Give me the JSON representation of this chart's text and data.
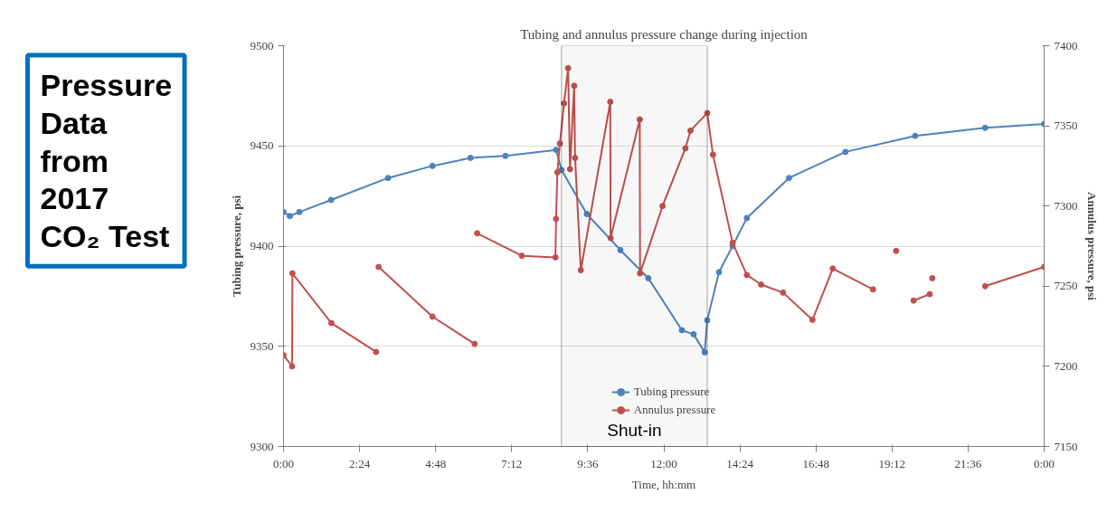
{
  "chart_data": {
    "type": "line",
    "title": "Tubing and annulus pressure change during injection",
    "xlabel": "Time, hh:mm",
    "ylabel": "Tubing pressure, psi",
    "y2label": "Annulus pressure, psi",
    "xlim": [
      0,
      24
    ],
    "ylim": [
      9300,
      9500
    ],
    "y2lim": [
      7150,
      7400
    ],
    "xticks": [
      {
        "value": 0,
        "label": "0:00"
      },
      {
        "value": 2.4,
        "label": "2:24"
      },
      {
        "value": 4.8,
        "label": "4:48"
      },
      {
        "value": 7.2,
        "label": "7:12"
      },
      {
        "value": 9.6,
        "label": "9:36"
      },
      {
        "value": 12,
        "label": "12:00"
      },
      {
        "value": 14.4,
        "label": "14:24"
      },
      {
        "value": 16.8,
        "label": "16:48"
      },
      {
        "value": 19.2,
        "label": "19:12"
      },
      {
        "value": 21.6,
        "label": "21:36"
      },
      {
        "value": 24,
        "label": "0:00"
      }
    ],
    "yticks": [
      9300,
      9350,
      9400,
      9450,
      9500
    ],
    "y2ticks": [
      7150,
      7200,
      7250,
      7300,
      7350,
      7400
    ],
    "grid": "y",
    "legend": "bottom",
    "marker": "circle",
    "line_style": "solid",
    "series": [
      {
        "name": "Tubing pressure",
        "color": "#4f81bd",
        "x": [
          0,
          0.2,
          0.5,
          1.5,
          3.3,
          4.7,
          5.9,
          7.0,
          8.6,
          8.77,
          9.57,
          10.63,
          11.51,
          12.57,
          12.94,
          13.29,
          13.37,
          13.74,
          14.17,
          14.62,
          15.95,
          17.73,
          19.93,
          22.14,
          24
        ],
        "values": [
          9417,
          9415,
          9417,
          9423,
          9434,
          9440,
          9444,
          9445,
          9448,
          9438,
          9416,
          9398,
          9384,
          9358,
          9356,
          9347,
          9363,
          9387,
          9400,
          9414,
          9434,
          9447,
          9455,
          9459,
          9461
        ]
      },
      {
        "name": "Annulus pressure",
        "color": "#c0504d",
        "axis": "y2",
        "x": [
          0,
          0.27,
          0.28,
          1.51,
          2.92,
          2.95,
          3.0,
          4.7,
          6.03,
          6.07,
          6.11,
          7.52,
          8.58,
          8.6,
          8.64,
          8.72,
          8.85,
          8.98,
          9.04,
          9.17,
          9.2,
          9.38,
          10.31,
          10.32,
          11.24,
          11.25,
          11.96,
          12.68,
          12.84,
          13.37,
          13.55,
          14.17,
          14.62,
          15.07,
          15.76,
          16.69,
          17.33,
          18.6,
          19.3,
          19.33,
          19.35,
          19.37,
          19.88,
          20.39,
          20.43,
          20.47,
          20.5,
          22.14,
          24
        ],
        "values": [
          7207,
          7200,
          7258,
          7227,
          7209,
          null,
          7262,
          7231,
          7214,
          null,
          7283,
          7269,
          7268,
          7292,
          7321,
          7339,
          7364,
          7386,
          7323,
          7375,
          7330,
          7260,
          7365,
          7280,
          7354,
          7258,
          7300,
          7336,
          7347,
          7358,
          7332,
          7277,
          7257,
          7251,
          7246,
          7229,
          7261,
          7248,
          null,
          7272,
          null,
          null,
          7241,
          7245,
          null,
          7255,
          null,
          7250,
          7262
        ]
      }
    ],
    "bands": [
      {
        "axis": "x",
        "from": 8.77,
        "to": 13.37,
        "label": "Shut-in",
        "color": "#000000"
      }
    ],
    "annotations": [
      "Pressure Data from 2017 CO₂ Test"
    ]
  }
}
